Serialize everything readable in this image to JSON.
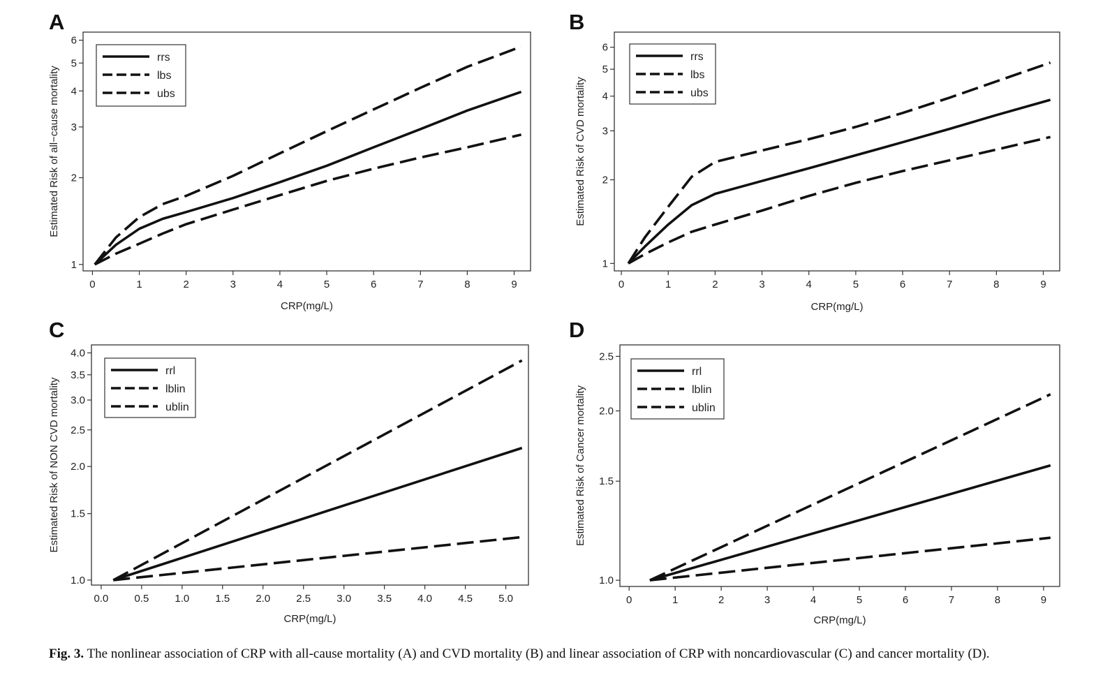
{
  "caption": {
    "label": "Fig. 3.",
    "text": "The nonlinear association of CRP with all-cause mortality (A) and CVD mortality (B) and linear association of CRP with noncardiovascular (C) and cancer mortality (D)."
  },
  "chart_data": [
    {
      "panel": "A",
      "type": "line",
      "xlabel": "CRP(mg/L)",
      "ylabel": "Estimated Risk of all−cause mortality",
      "y_scale": "log",
      "xlim": [
        -0.2,
        9.35
      ],
      "ylim": [
        0.95,
        6.4
      ],
      "xticks": [
        0,
        1,
        2,
        3,
        4,
        5,
        6,
        7,
        8,
        9
      ],
      "xticklabels": [
        "0",
        "1",
        "2",
        "3",
        "4",
        "5",
        "6",
        "7",
        "8",
        "9"
      ],
      "yticks": [
        1,
        2,
        3,
        4,
        5,
        6
      ],
      "yticklabels": [
        "1",
        "2",
        "3",
        "4",
        "5",
        "6"
      ],
      "legend_position": "top-left",
      "series": [
        {
          "name": "rrs",
          "style": "solid",
          "x": [
            0.05,
            0.5,
            1.0,
            1.5,
            2.0,
            3.0,
            4.0,
            5.0,
            6.0,
            7.0,
            8.0,
            9.15
          ],
          "y": [
            1.0,
            1.17,
            1.33,
            1.44,
            1.52,
            1.7,
            1.93,
            2.2,
            2.55,
            2.95,
            3.42,
            3.97
          ]
        },
        {
          "name": "lbs",
          "style": "dashed",
          "x": [
            0.05,
            0.5,
            1.0,
            1.5,
            2.0,
            3.0,
            4.0,
            5.0,
            6.0,
            7.0,
            8.0,
            9.15
          ],
          "y": [
            1.0,
            1.09,
            1.18,
            1.28,
            1.38,
            1.55,
            1.74,
            1.95,
            2.15,
            2.35,
            2.55,
            2.82
          ]
        },
        {
          "name": "ubs",
          "style": "dashed",
          "x": [
            0.05,
            0.5,
            1.0,
            1.5,
            2.0,
            3.0,
            4.0,
            5.0,
            6.0,
            7.0,
            8.0,
            9.15
          ],
          "y": [
            1.0,
            1.24,
            1.46,
            1.62,
            1.73,
            2.03,
            2.43,
            2.9,
            3.45,
            4.1,
            4.85,
            5.7
          ]
        }
      ]
    },
    {
      "panel": "B",
      "type": "line",
      "xlabel": "CRP(mg/L)",
      "ylabel": "Estimated Risk of CVD mortality",
      "y_scale": "log",
      "xlim": [
        -0.15,
        9.35
      ],
      "ylim": [
        0.94,
        6.8
      ],
      "xticks": [
        0,
        1,
        2,
        3,
        4,
        5,
        6,
        7,
        8,
        9
      ],
      "xticklabels": [
        "0",
        "1",
        "2",
        "3",
        "4",
        "5",
        "6",
        "7",
        "8",
        "9"
      ],
      "yticks": [
        1,
        2,
        3,
        4,
        5,
        6
      ],
      "yticklabels": [
        "1",
        "2",
        "3",
        "4",
        "5",
        "6"
      ],
      "legend_position": "top-left",
      "series": [
        {
          "name": "rrs",
          "style": "solid",
          "x": [
            0.15,
            0.5,
            1.0,
            1.5,
            2.0,
            3.0,
            4.0,
            5.0,
            6.0,
            7.0,
            8.0,
            9.15
          ],
          "y": [
            1.0,
            1.15,
            1.38,
            1.62,
            1.78,
            1.98,
            2.2,
            2.45,
            2.73,
            3.05,
            3.42,
            3.88
          ]
        },
        {
          "name": "lbs",
          "style": "dashed",
          "x": [
            0.15,
            0.5,
            1.0,
            1.5,
            2.0,
            3.0,
            4.0,
            5.0,
            6.0,
            7.0,
            8.0,
            9.15
          ],
          "y": [
            1.0,
            1.08,
            1.19,
            1.3,
            1.38,
            1.55,
            1.75,
            1.95,
            2.15,
            2.35,
            2.57,
            2.85
          ]
        },
        {
          "name": "ubs",
          "style": "dashed",
          "x": [
            0.15,
            0.5,
            1.0,
            1.5,
            2.0,
            3.0,
            4.0,
            5.0,
            6.0,
            7.0,
            8.0,
            9.15
          ],
          "y": [
            1.0,
            1.24,
            1.6,
            2.05,
            2.32,
            2.55,
            2.8,
            3.1,
            3.48,
            3.95,
            4.52,
            5.28
          ]
        }
      ]
    },
    {
      "panel": "C",
      "type": "line",
      "xlabel": "CRP(mg/L)",
      "ylabel": "Estimated Risk of NON CVD mortality",
      "y_scale": "log",
      "xlim": [
        -0.12,
        5.28
      ],
      "ylim": [
        0.97,
        4.2
      ],
      "xticks": [
        0.0,
        0.5,
        1.0,
        1.5,
        2.0,
        2.5,
        3.0,
        3.5,
        4.0,
        4.5,
        5.0
      ],
      "xticklabels": [
        "0.0",
        "0.5",
        "1.0",
        "1.5",
        "2.0",
        "2.5",
        "3.0",
        "3.5",
        "4.0",
        "4.5",
        "5.0"
      ],
      "yticks": [
        1.0,
        1.5,
        2.0,
        2.5,
        3.0,
        3.5,
        4.0
      ],
      "yticklabels": [
        "1.0",
        "1.5",
        "2.0",
        "2.5",
        "3.0",
        "3.5",
        "4.0"
      ],
      "legend_position": "top-left",
      "series": [
        {
          "name": "rrl",
          "style": "solid",
          "x": [
            0.15,
            5.2
          ],
          "y": [
            1.0,
            2.24
          ]
        },
        {
          "name": "lblin",
          "style": "dashed",
          "x": [
            0.15,
            5.2
          ],
          "y": [
            1.0,
            1.3
          ]
        },
        {
          "name": "ublin",
          "style": "dashed",
          "x": [
            0.15,
            5.2
          ],
          "y": [
            1.0,
            3.82
          ]
        }
      ]
    },
    {
      "panel": "D",
      "type": "line",
      "xlabel": "CRP(mg/L)",
      "ylabel": "Estimated Risk of Cancer mortality",
      "y_scale": "log",
      "xlim": [
        -0.2,
        9.35
      ],
      "ylim": [
        0.975,
        2.62
      ],
      "xticks": [
        0,
        1,
        2,
        3,
        4,
        5,
        6,
        7,
        8,
        9
      ],
      "xticklabels": [
        "0",
        "1",
        "2",
        "3",
        "4",
        "5",
        "6",
        "7",
        "8",
        "9"
      ],
      "yticks": [
        1.0,
        1.5,
        2.0,
        2.5
      ],
      "yticklabels": [
        "1.0",
        "1.5",
        "2.0",
        "2.5"
      ],
      "legend_position": "top-left",
      "series": [
        {
          "name": "rrl",
          "style": "solid",
          "x": [
            0.45,
            9.15
          ],
          "y": [
            1.0,
            1.6
          ]
        },
        {
          "name": "lblin",
          "style": "dashed",
          "x": [
            0.45,
            9.15
          ],
          "y": [
            1.0,
            1.19
          ]
        },
        {
          "name": "ublin",
          "style": "dashed",
          "x": [
            0.45,
            9.15
          ],
          "y": [
            1.0,
            2.14
          ]
        }
      ]
    }
  ]
}
